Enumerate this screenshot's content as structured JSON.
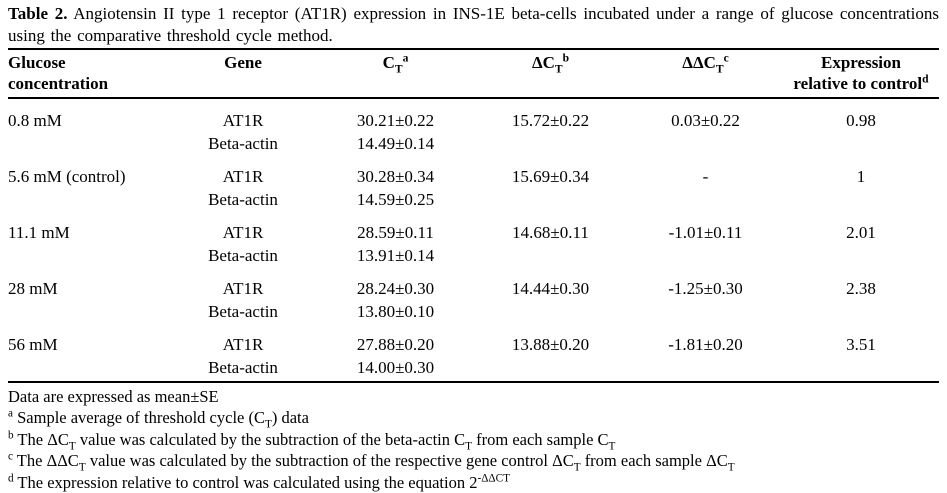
{
  "caption": {
    "label": "Table 2.",
    "text": "Angiotensin II type 1 receptor (AT1R) expression in INS-1E beta-cells incubated under a range of glucose concentrations using the comparative threshold cycle method."
  },
  "table": {
    "headers": [
      {
        "label": "Glucose concentration"
      },
      {
        "label": "Gene"
      },
      {
        "segments": [
          {
            "t": "text",
            "v": "C"
          },
          {
            "t": "sub",
            "v": "T"
          },
          {
            "t": "sup",
            "v": "a"
          }
        ]
      },
      {
        "segments": [
          {
            "t": "text",
            "v": "ΔC"
          },
          {
            "t": "sub",
            "v": "T"
          },
          {
            "t": "sup",
            "v": "b"
          }
        ]
      },
      {
        "segments": [
          {
            "t": "text",
            "v": "ΔΔC"
          },
          {
            "t": "sub",
            "v": "T"
          },
          {
            "t": "sup",
            "v": "c"
          }
        ]
      },
      {
        "line1": "Expression",
        "segments": [
          {
            "t": "text",
            "v": "relative to control"
          },
          {
            "t": "sup",
            "v": "d"
          }
        ]
      }
    ],
    "rows": [
      {
        "glucose": "0.8 mM",
        "gene_1": "AT1R",
        "ct_1": "30.21±0.22",
        "dct": "15.72±0.22",
        "ddct": "0.03±0.22",
        "expression": "0.98",
        "gene_2": "Beta-actin",
        "ct_2": "14.49±0.14"
      },
      {
        "glucose": "5.6 mM (control)",
        "gene_1": "AT1R",
        "ct_1": "30.28±0.34",
        "dct": "15.69±0.34",
        "ddct": "-",
        "expression": "1",
        "gene_2": "Beta-actin",
        "ct_2": "14.59±0.25"
      },
      {
        "glucose": "11.1 mM",
        "gene_1": "AT1R",
        "ct_1": "28.59±0.11",
        "dct": "14.68±0.11",
        "ddct": "-1.01±0.11",
        "expression": "2.01",
        "gene_2": "Beta-actin",
        "ct_2": "13.91±0.14"
      },
      {
        "glucose": "28 mM",
        "gene_1": "AT1R",
        "ct_1": "28.24±0.30",
        "dct": "14.44±0.30",
        "ddct": "-1.25±0.30",
        "expression": "2.38",
        "gene_2": "Beta-actin",
        "ct_2": "13.80±0.10"
      },
      {
        "glucose": "56 mM",
        "gene_1": "AT1R",
        "ct_1": "27.88±0.20",
        "dct": "13.88±0.20",
        "ddct": "-1.81±0.20",
        "expression": "3.51",
        "gene_2": "Beta-actin",
        "ct_2": "14.00±0.30"
      }
    ]
  },
  "footnotes": [
    {
      "segments": [
        {
          "t": "text",
          "v": "Data are expressed as mean±SE"
        }
      ]
    },
    {
      "segments": [
        {
          "t": "sup",
          "v": "a"
        },
        {
          "t": "text",
          "v": " Sample average of threshold cycle (C"
        },
        {
          "t": "sub",
          "v": "T"
        },
        {
          "t": "text",
          "v": ") data"
        }
      ]
    },
    {
      "segments": [
        {
          "t": "sup",
          "v": "b"
        },
        {
          "t": "text",
          "v": " The ΔC"
        },
        {
          "t": "sub",
          "v": "T"
        },
        {
          "t": "text",
          "v": " value was calculated by the subtraction of the beta-actin C"
        },
        {
          "t": "sub",
          "v": "T"
        },
        {
          "t": "text",
          "v": " from each sample C"
        },
        {
          "t": "sub",
          "v": "T"
        }
      ]
    },
    {
      "segments": [
        {
          "t": "sup",
          "v": "c"
        },
        {
          "t": "text",
          "v": " The ΔΔC"
        },
        {
          "t": "sub",
          "v": "T"
        },
        {
          "t": "text",
          "v": " value was calculated by the subtraction of the respective gene control ΔC"
        },
        {
          "t": "sub",
          "v": "T"
        },
        {
          "t": "text",
          "v": " from each sample ΔC"
        },
        {
          "t": "sub",
          "v": "T"
        }
      ]
    },
    {
      "segments": [
        {
          "t": "sup",
          "v": "d"
        },
        {
          "t": "text",
          "v": " The expression relative to control was calculated using the equation 2"
        },
        {
          "t": "sup",
          "v": "-ΔΔCT"
        }
      ]
    }
  ]
}
